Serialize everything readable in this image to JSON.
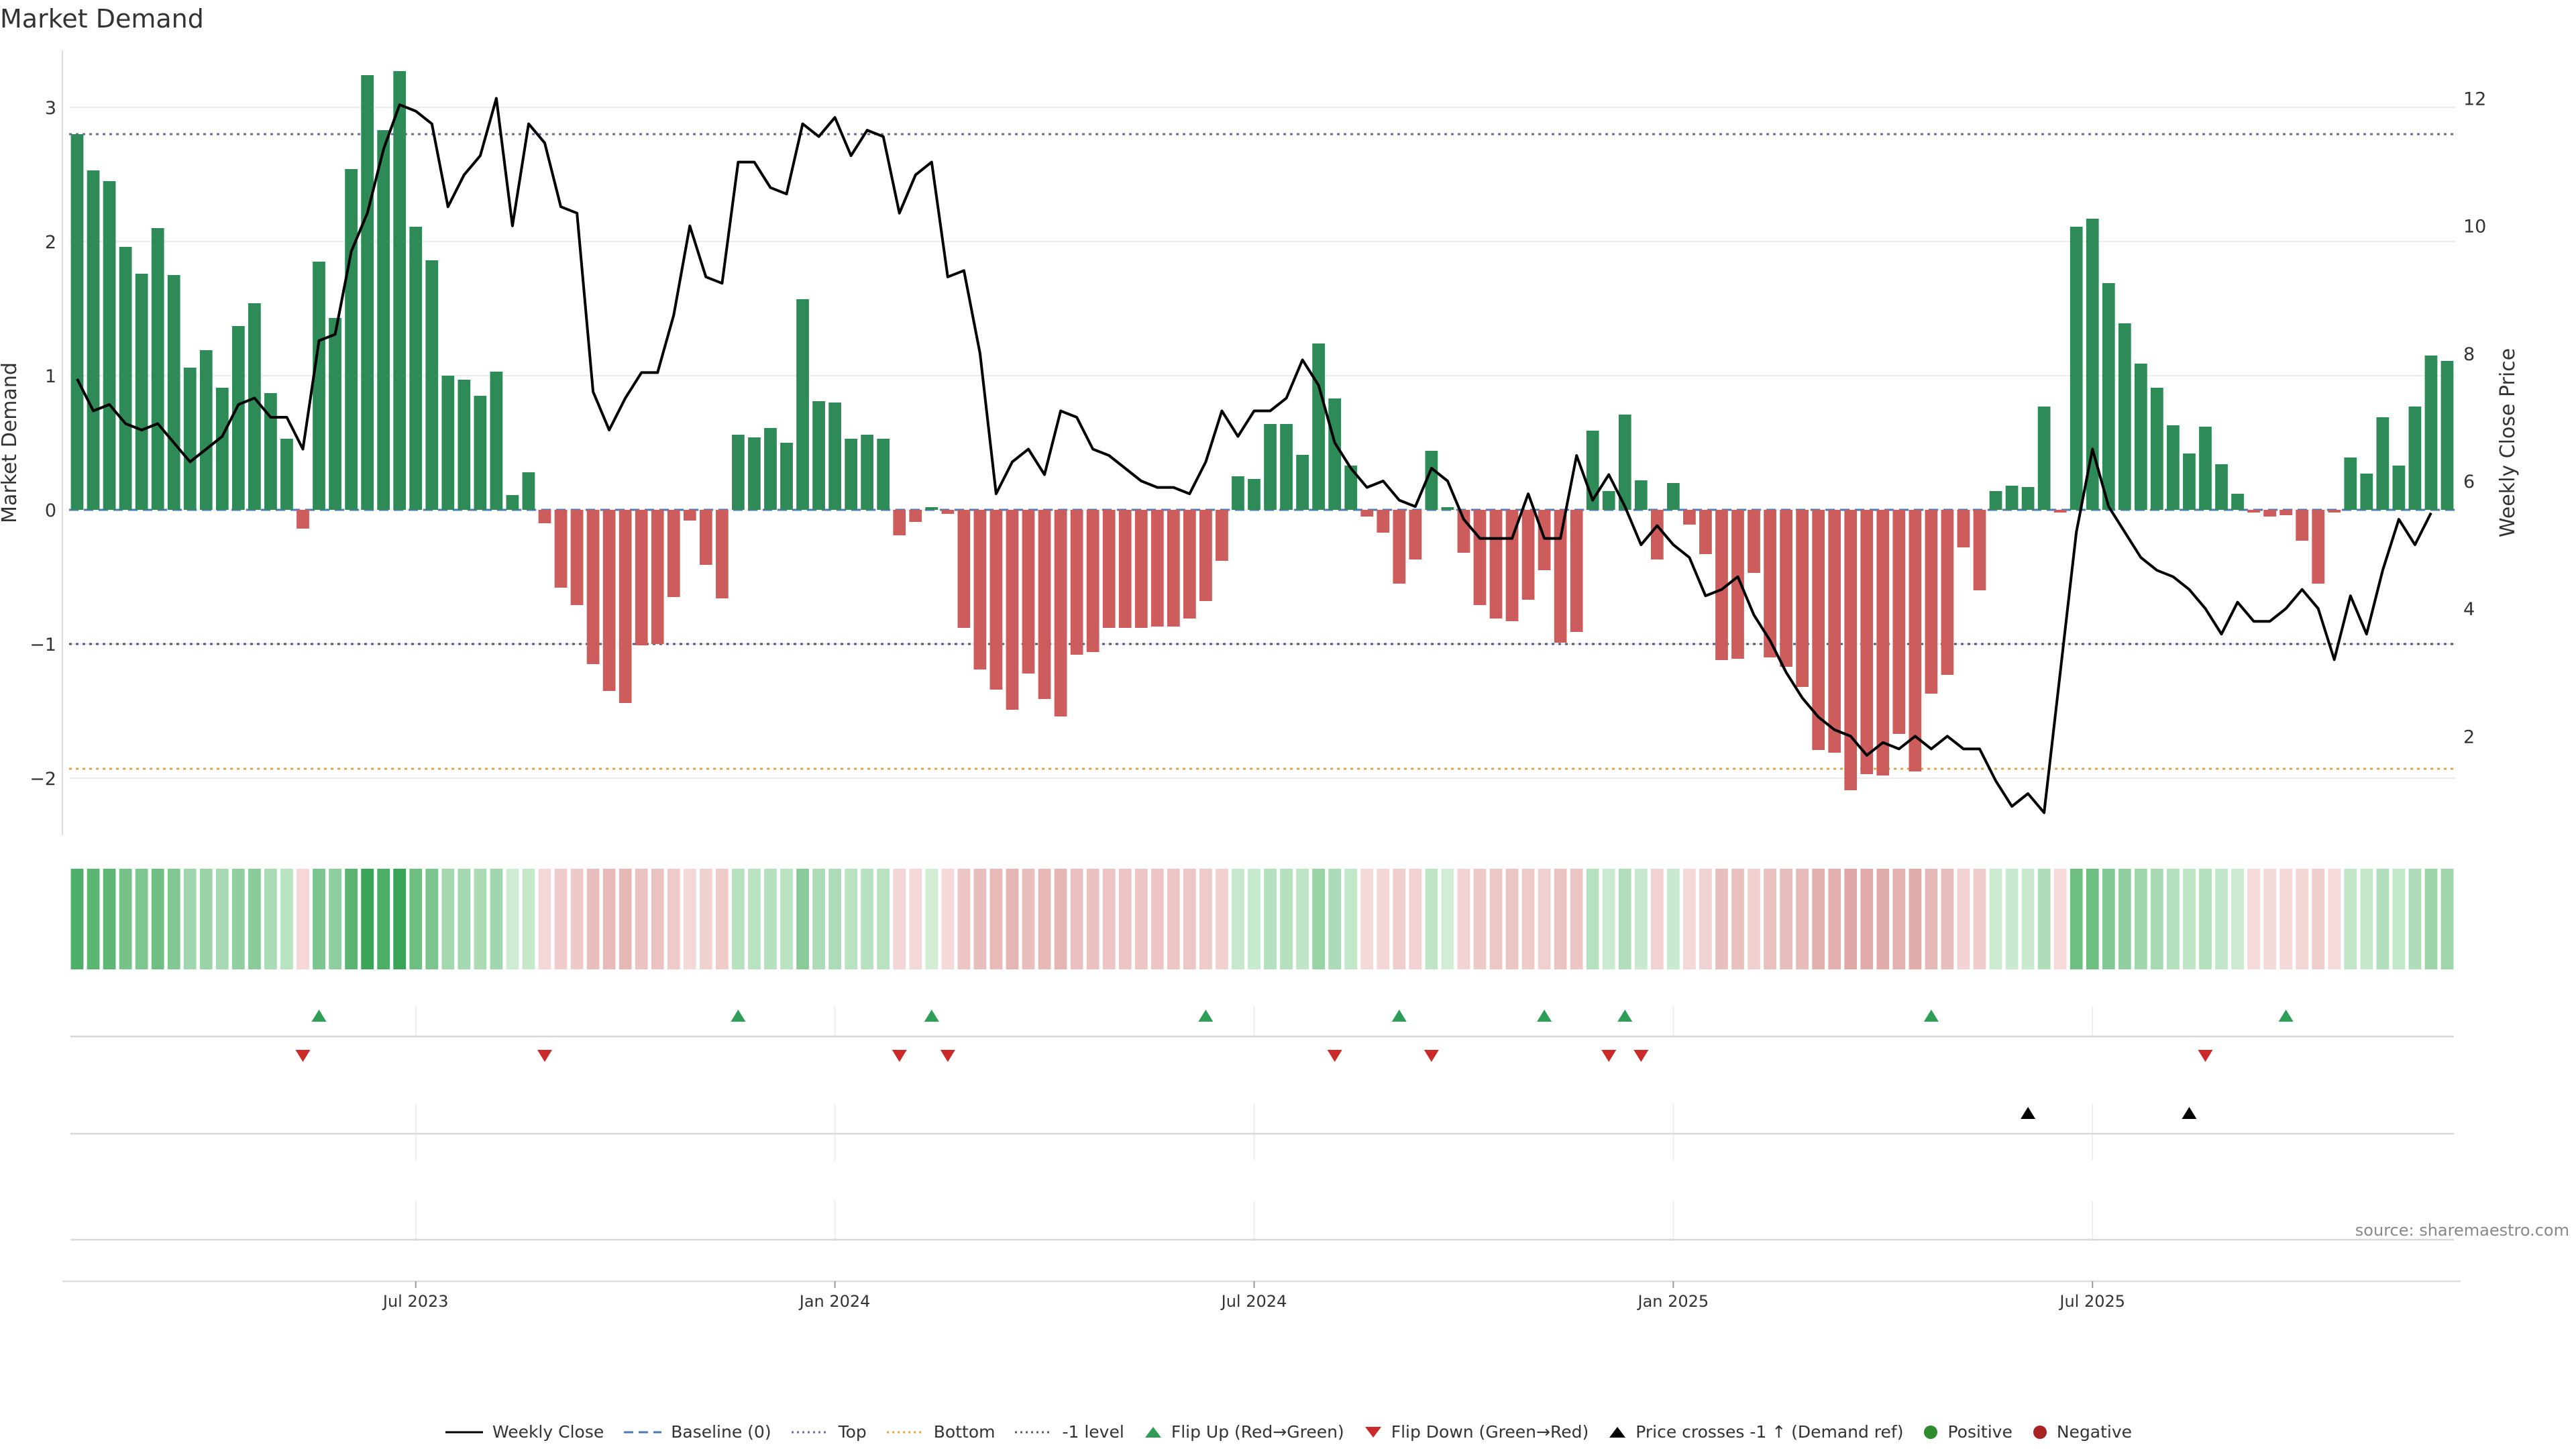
{
  "title": "Market Demand",
  "source_text": "source: sharemaestro.com",
  "colors": {
    "positive_bar": "#2e8b57",
    "negative_bar": "#cd5c5c",
    "price_line": "#000000",
    "top_line": "#6b6b9a",
    "bottom_line": "#e8a04a",
    "minus1_line": "#555577",
    "flip_up": "#2e9e57",
    "flip_down": "#cc2a2a",
    "cross": "#000000",
    "positive_dot": "#2e8b2e",
    "negative_dot": "#aa2222"
  },
  "legend": [
    {
      "key": "weekly_close",
      "label": "Weekly Close",
      "icon": "solid-line"
    },
    {
      "key": "baseline",
      "label": "Baseline (0)",
      "icon": "dashed-line"
    },
    {
      "key": "top",
      "label": "Top",
      "icon": "dotted-line"
    },
    {
      "key": "bottom",
      "label": "Bottom",
      "icon": "dotted-line-orange"
    },
    {
      "key": "minus1",
      "label": "-1 level",
      "icon": "dotted-line-dark"
    },
    {
      "key": "flip_up",
      "label": "Flip Up (Red→Green)",
      "icon": "triangle-up-green"
    },
    {
      "key": "flip_down",
      "label": "Flip Down (Green→Red)",
      "icon": "triangle-down-red"
    },
    {
      "key": "cross",
      "label": "Price crosses -1 ↑ (Demand ref)",
      "icon": "triangle-up-black"
    },
    {
      "key": "positive",
      "label": "Positive",
      "icon": "dot-green"
    },
    {
      "key": "negative",
      "label": "Negative",
      "icon": "dot-red"
    }
  ],
  "chart_data": {
    "type": "bar",
    "title": "Market Demand",
    "ylabel": "Market Demand",
    "y2label": "Weekly Close Price",
    "ylim": [
      -2.4,
      3.4
    ],
    "y2lim": [
      0.5,
      12.7
    ],
    "yticks": [
      -2,
      -1,
      0,
      1,
      2,
      3
    ],
    "y2ticks": [
      2,
      4,
      6,
      8,
      10,
      12
    ],
    "xticks": [
      {
        "index": 21,
        "label": "Jul 2023"
      },
      {
        "index": 47,
        "label": "Jan 2024"
      },
      {
        "index": 73,
        "label": "Jul 2024"
      },
      {
        "index": 99,
        "label": "Jan 2025"
      },
      {
        "index": 125,
        "label": "Jul 2025"
      }
    ],
    "reference_lines": {
      "top": 2.8,
      "bottom": -1.93,
      "minus1_level": -1.0,
      "baseline": 0
    },
    "demand": [
      2.8,
      2.53,
      2.45,
      1.96,
      1.76,
      2.1,
      1.75,
      1.06,
      1.19,
      0.91,
      1.37,
      1.54,
      0.87,
      0.53,
      -0.14,
      1.85,
      1.43,
      2.54,
      3.24,
      2.83,
      3.27,
      2.11,
      1.86,
      1.0,
      0.97,
      0.85,
      1.03,
      0.11,
      0.28,
      -0.1,
      -0.58,
      -0.71,
      -1.15,
      -1.35,
      -1.44,
      -1.01,
      -1.0,
      -0.65,
      -0.08,
      -0.41,
      -0.66,
      0.56,
      0.54,
      0.61,
      0.5,
      1.57,
      0.81,
      0.8,
      0.53,
      0.56,
      0.53,
      -0.19,
      -0.09,
      0.02,
      -0.03,
      -0.88,
      -1.19,
      -1.34,
      -1.49,
      -1.22,
      -1.41,
      -1.54,
      -1.08,
      -1.06,
      -0.88,
      -0.88,
      -0.88,
      -0.87,
      -0.87,
      -0.81,
      -0.68,
      -0.38,
      0.25,
      0.23,
      0.64,
      0.64,
      0.41,
      1.24,
      0.83,
      0.33,
      -0.05,
      -0.17,
      -0.55,
      -0.37,
      0.44,
      0.02,
      -0.32,
      -0.71,
      -0.81,
      -0.83,
      -0.67,
      -0.45,
      -0.99,
      -0.91,
      0.59,
      0.14,
      0.71,
      0.22,
      -0.37,
      0.2,
      -0.11,
      -0.33,
      -1.12,
      -1.11,
      -0.47,
      -1.1,
      -1.17,
      -1.32,
      -1.79,
      -1.81,
      -2.09,
      -1.97,
      -1.98,
      -1.67,
      -1.95,
      -1.37,
      -1.23,
      -0.28,
      -0.6,
      0.14,
      0.18,
      0.17,
      0.77,
      -0.02,
      2.11,
      2.17,
      1.69,
      1.39,
      1.09,
      0.91,
      0.63,
      0.42,
      0.62,
      0.34,
      0.12,
      -0.02,
      -0.05,
      -0.04,
      -0.23,
      -0.55,
      -0.02,
      0.39,
      0.27,
      0.69,
      0.33,
      0.77,
      1.15,
      1.11
    ],
    "weekly_close": [
      7.6,
      7.1,
      7.2,
      6.9,
      6.8,
      6.9,
      6.6,
      6.3,
      6.5,
      6.7,
      7.2,
      7.3,
      7.0,
      7.0,
      6.5,
      8.2,
      8.3,
      9.6,
      10.2,
      11.2,
      11.9,
      11.8,
      11.6,
      10.3,
      10.8,
      11.1,
      12.0,
      10.0,
      11.6,
      11.3,
      10.3,
      10.2,
      7.4,
      6.8,
      7.3,
      7.7,
      7.7,
      8.6,
      10.0,
      9.2,
      9.1,
      11.0,
      11.0,
      10.6,
      10.5,
      11.6,
      11.4,
      11.7,
      11.1,
      11.5,
      11.4,
      10.2,
      10.8,
      11.0,
      9.2,
      9.3,
      8.0,
      5.8,
      6.3,
      6.5,
      6.1,
      7.1,
      7.0,
      6.5,
      6.4,
      6.2,
      6.0,
      5.9,
      5.9,
      5.8,
      6.3,
      7.1,
      6.7,
      7.1,
      7.1,
      7.3,
      7.9,
      7.5,
      6.6,
      6.2,
      5.9,
      6.0,
      5.7,
      5.6,
      6.2,
      6.0,
      5.4,
      5.1,
      5.1,
      5.1,
      5.8,
      5.1,
      5.1,
      6.4,
      5.7,
      6.1,
      5.6,
      5.0,
      5.3,
      5.0,
      4.8,
      4.2,
      4.3,
      4.5,
      3.9,
      3.5,
      3.0,
      2.6,
      2.3,
      2.1,
      2.0,
      1.7,
      1.9,
      1.8,
      2.0,
      1.8,
      2.0,
      1.8,
      1.8,
      1.3,
      0.9,
      1.1,
      0.8,
      3.0,
      5.2,
      6.5,
      5.6,
      5.2,
      4.8,
      4.6,
      4.5,
      4.3,
      4.0,
      3.6,
      4.1,
      3.8,
      3.8,
      4.0,
      4.3,
      4.0,
      3.2,
      4.2,
      3.6,
      4.6,
      5.4,
      5.0,
      5.5
    ],
    "flip_up_indices": [
      15,
      41,
      53,
      70,
      82,
      91,
      96,
      115,
      137
    ],
    "flip_down_indices": [
      14,
      29,
      51,
      54,
      78,
      84,
      95,
      97,
      132
    ],
    "cross_indices": [
      121,
      131
    ]
  }
}
